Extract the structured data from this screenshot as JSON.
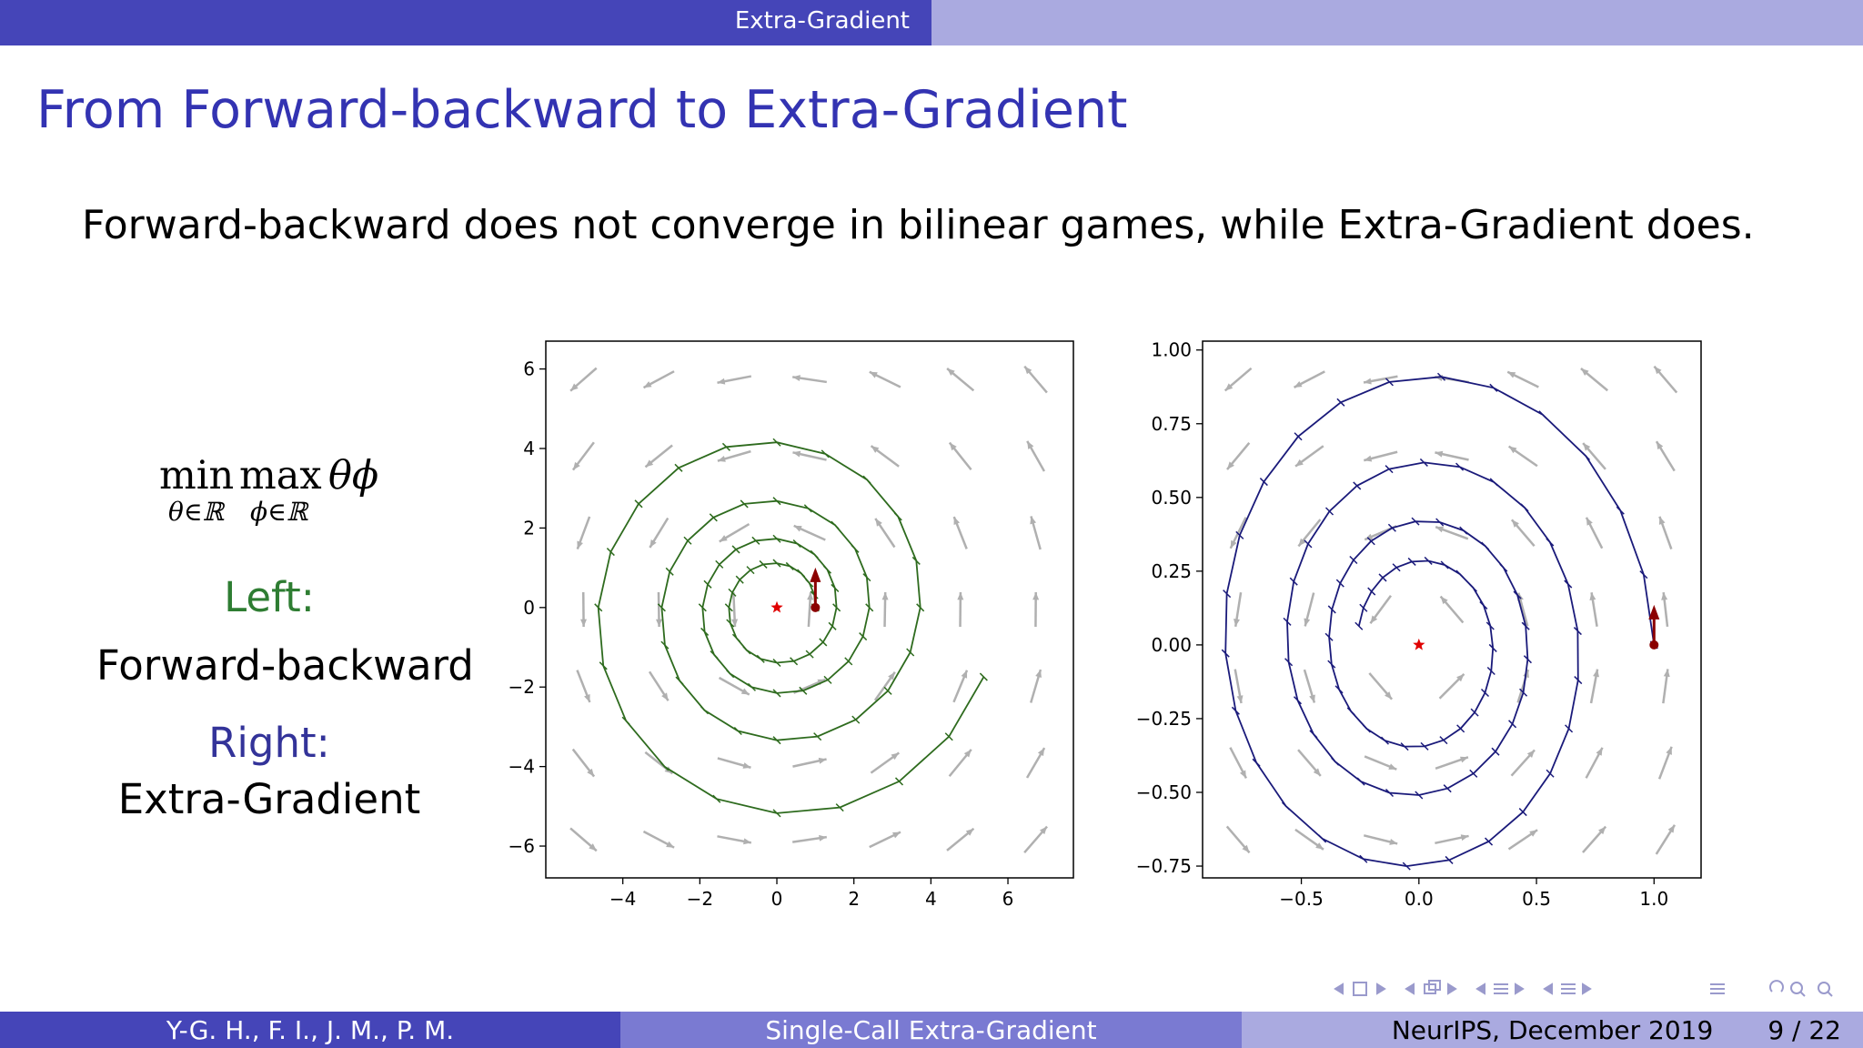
{
  "header": {
    "section": "Extra-Gradient"
  },
  "slide": {
    "title": "From Forward-backward to Extra-Gradient",
    "lead": "Forward-backward does not converge in bilinear games, while Extra-Gradient does.",
    "formula": {
      "op1": "min",
      "op2": "max",
      "sub1": "θ∈ℝ",
      "sub2": "ϕ∈ℝ",
      "expr": "θϕ"
    },
    "left_label": "Left:",
    "left_name": "Forward-backward",
    "right_label": "Right:",
    "right_name": "Extra-Gradient"
  },
  "colors": {
    "accent": "#3333b2",
    "header": "#4545b8",
    "fb_curve": "#2e6b1e",
    "eg_curve": "#1a1a7a",
    "quiver": "#b0b0b0",
    "start_arrow": "#8b0000",
    "star": "#e00000"
  },
  "chart_data": [
    {
      "type": "line",
      "name": "forward-backward",
      "xlim": [
        -6,
        7.7
      ],
      "ylim": [
        -6.8,
        6.7
      ],
      "xticks": [
        -4,
        -2,
        0,
        2,
        4,
        6
      ],
      "xtick_labels": [
        "−4",
        "−2",
        "0",
        "2",
        "4",
        "6"
      ],
      "yticks": [
        -6,
        -4,
        -2,
        0,
        2,
        4,
        6
      ],
      "ytick_labels": [
        "−6",
        "−4",
        "−2",
        "0",
        "2",
        "4",
        "6"
      ],
      "start": [
        1,
        0
      ],
      "equilibrium": [
        0,
        0
      ],
      "spiral": {
        "growth_per_turn": 1.55,
        "steps": 80,
        "rotation_per_step_deg": 18
      },
      "grid": false
    },
    {
      "type": "line",
      "name": "extra-gradient",
      "xlim": [
        -0.92,
        1.2
      ],
      "ylim": [
        -0.79,
        1.03
      ],
      "xticks": [
        -0.5,
        0.0,
        0.5,
        1.0
      ],
      "xtick_labels": [
        "−0.5",
        "0.0",
        "0.5",
        "1.0"
      ],
      "yticks": [
        -0.75,
        -0.5,
        -0.25,
        0.0,
        0.25,
        0.5,
        0.75,
        1.0
      ],
      "ytick_labels": [
        "−0.75",
        "−0.50",
        "−0.25",
        "0.00",
        "0.25",
        "0.50",
        "0.75",
        "1.00"
      ],
      "start": [
        1,
        0
      ],
      "equilibrium": [
        0,
        0
      ],
      "spiral": {
        "decay_per_turn": 0.68,
        "steps": 90,
        "rotation_per_step_deg": 14
      },
      "grid": false
    }
  ],
  "footer": {
    "authors": "Y-G. H., F. I., J. M., P. M.",
    "talk": "Single-Call Extra-Gradient",
    "venue": "NeurIPS, December 2019",
    "page": "9 / 22"
  }
}
